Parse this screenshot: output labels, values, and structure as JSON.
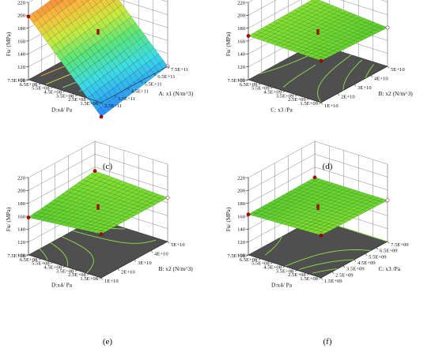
{
  "chart_data": [
    {
      "type": "surface",
      "label": "(c)",
      "zlabel": "Fu/ (MPa)",
      "zticks": [
        "100",
        "120",
        "140",
        "160",
        "180",
        "200",
        "220"
      ],
      "x_label": "A: x1 (N/m^3)",
      "x_ticks": [
        "2.5E+11",
        "3.5E+11",
        "4.5E+11",
        "5.5E+11",
        "6.5E+11",
        "7.5E+11"
      ],
      "y_label": "D:x4/ Pa",
      "y_ticks": [
        "1.5E+08",
        "2.5E+08",
        "3.5E+08",
        "4.5E+08",
        "5.5E+08",
        "6.5E+08",
        "7.5E+08"
      ],
      "corners": {
        "low_low": 78,
        "high_low": 100,
        "low_high": 198,
        "high_high": 218
      },
      "colormap": "rainbow",
      "center_value": 163
    },
    {
      "type": "surface",
      "label": "(d)",
      "zlabel": "Fu/ (MPa)",
      "zticks": [
        "100",
        "120",
        "140",
        "160",
        "180",
        "200",
        "220"
      ],
      "x_label": "B: x2 (N/m^3)",
      "x_ticks": [
        "1E+10",
        "2E+10",
        "3E+10",
        "4E+10",
        "5E+10"
      ],
      "y_label": "C: x3 /Pa",
      "y_ticks": [
        "1.5E+09",
        "2.5E+09",
        "3.5E+09",
        "4.5E+09",
        "5.5E+09",
        "6.5E+09",
        "7.5E+09"
      ],
      "corners": {
        "low_low": 165,
        "high_low": 160,
        "low_high": 168,
        "high_high": 170
      },
      "colormap": "green",
      "center_value": 163
    },
    {
      "type": "surface",
      "label": "(e)",
      "zlabel": "Fu/ (MPa)",
      "zticks": [
        "100",
        "120",
        "140",
        "160",
        "180",
        "200",
        "220"
      ],
      "x_label": "B: x2 (N/m^3)",
      "x_ticks": [
        "1E+10",
        "2E+10",
        "3E+10",
        "4E+10",
        "5E+10"
      ],
      "y_label": "D:x4/ Pa",
      "y_ticks": [
        "1.5E+08",
        "2.5E+08",
        "3.5E+08",
        "4.5E+08",
        "5.5E+08",
        "6.5E+08",
        "7.5E+08"
      ],
      "corners": {
        "low_low": 168,
        "high_low": 168,
        "low_high": 158,
        "high_high": 174
      },
      "colormap": "green",
      "center_value": 163
    },
    {
      "type": "surface",
      "label": "(f)",
      "zlabel": "Fu/ (MPa)",
      "zticks": [
        "100",
        "120",
        "140",
        "160",
        "180",
        "200",
        "220"
      ],
      "x_label": "C: x3 /Pa",
      "x_ticks": [
        "1.5E+09",
        "2.5E+09",
        "3.5E+09",
        "4.5E+09",
        "5.5E+09",
        "6.5E+09",
        "7.5E+09"
      ],
      "y_label": "D:x4/ Pa",
      "y_ticks": [
        "1.5E+08",
        "2.5E+08",
        "3.5E+08",
        "4.5E+08",
        "5.5E+08",
        "6.5E+08",
        "7.5E+08"
      ],
      "corners": {
        "low_low": 166,
        "high_low": 164,
        "low_high": 163,
        "high_high": 164
      },
      "colormap": "green",
      "center_value": 163
    }
  ]
}
